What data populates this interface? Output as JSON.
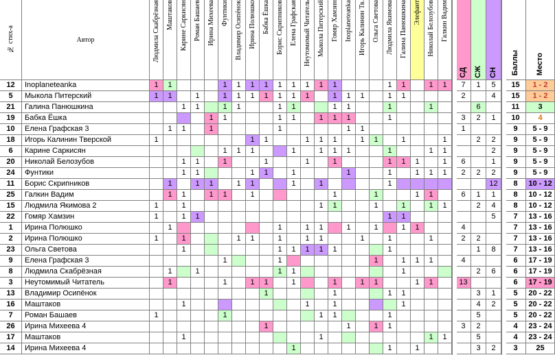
{
  "table": {
    "header": {
      "number": "№ стих-а",
      "author": "Автор",
      "voters": [
        "Людмила Скабрёзная",
        "Маштаков",
        "Карине Саркисян",
        "Роман Башаев",
        "Ирина Михеева",
        "Фунтики",
        "Владимир Осипёнок",
        "Ирина Полюшко",
        "Бабка Ёшка",
        "Борис Скрипников",
        "Елена Графская",
        "Неутомимый Читатель",
        "Мыкола Питерский",
        "Гомяр Хамзин",
        "Inoplaneteanka",
        "Игорь Калинин Тв.",
        "Ольга Светова",
        "Людмила Якимова",
        "Галина Панюшкина",
        "Элефант",
        "Николай Белозубов",
        "Галкин Вадим"
      ],
      "voter_fills": {
        "19": "y"
      },
      "sd": "СД",
      "szh": "СЖ",
      "sn": "СН",
      "score": "Баллы",
      "place": "Место"
    },
    "rows": [
      {
        "number": 12,
        "author": "Inoplaneteanka",
        "votes": [
          1,
          1,
          null,
          null,
          null,
          1,
          1,
          1,
          1,
          1,
          1,
          1,
          1,
          1,
          null,
          null,
          null,
          1,
          1,
          null,
          1,
          1
        ],
        "fills": {
          "0": "p",
          "1": "g",
          "5": "v",
          "7": "v",
          "8": "v",
          "12": "p",
          "13": "v",
          "18": "p",
          "20": "p",
          "21": "p"
        },
        "sd": 7,
        "szh": 1,
        "sn": 5,
        "score": 15,
        "place": "1 - 2",
        "place_fill": "o"
      },
      {
        "number": 5,
        "author": "Мыкола Питерский",
        "votes": [
          1,
          1,
          null,
          1,
          null,
          1,
          1,
          1,
          1,
          1,
          1,
          1,
          null,
          1,
          1,
          1,
          null,
          1,
          1,
          null,
          null,
          null
        ],
        "fills": {
          "0": "v",
          "1": "v",
          "5": "v",
          "8": "p",
          "11": "p",
          "13": "v"
        },
        "sd": 2,
        "szh": null,
        "sn": 4,
        "score": 15,
        "place": "1 - 2",
        "place_fill": "o"
      },
      {
        "number": 21,
        "author": "Галина Панюшкина",
        "votes": [
          null,
          null,
          1,
          1,
          null,
          1,
          1,
          null,
          null,
          1,
          1,
          null,
          null,
          1,
          1,
          null,
          null,
          1,
          null,
          null,
          1,
          null
        ],
        "fills": {
          "4": "g",
          "5": "g",
          "10": "g",
          "12": "g",
          "17": "g",
          "20": "g"
        },
        "sd": null,
        "szh": 6,
        "sn": null,
        "score": 11,
        "place": "3",
        "place_fill": "g",
        "hl": "szh"
      },
      {
        "number": 19,
        "author": "Бабка Ёшка",
        "votes": [
          null,
          null,
          null,
          null,
          1,
          1,
          null,
          null,
          null,
          1,
          1,
          null,
          1,
          1,
          1,
          null,
          null,
          1,
          null,
          null,
          null,
          null
        ],
        "fills": {
          "2": "v",
          "4": "p",
          "12": "p",
          "13": "p",
          "14": "p"
        },
        "sd": 3,
        "szh": 2,
        "sn": 1,
        "score": 10,
        "place": "4",
        "place_fill": "t"
      },
      {
        "number": 10,
        "author": "Елена Графская 3",
        "votes": [
          null,
          1,
          1,
          null,
          1,
          null,
          null,
          null,
          null,
          1,
          null,
          null,
          null,
          null,
          1,
          1,
          null,
          null,
          null,
          null,
          null,
          null
        ],
        "fills": {
          "4": "p"
        },
        "sd": 1,
        "szh": null,
        "sn": null,
        "score": 9,
        "place": "5 - 9"
      },
      {
        "number": 18,
        "author": "Игорь Калинин Тверской",
        "votes": [
          1,
          null,
          null,
          null,
          null,
          null,
          null,
          1,
          1,
          null,
          null,
          1,
          1,
          1,
          null,
          1,
          1,
          null,
          1,
          null,
          null,
          1
        ],
        "fills": {
          "7": "v",
          "16": "g"
        },
        "sd": null,
        "szh": 2,
        "sn": 2,
        "score": 9,
        "place": "5 - 9"
      },
      {
        "number": 6,
        "author": "Карине Саркисян",
        "votes": [
          null,
          null,
          null,
          null,
          null,
          1,
          1,
          1,
          null,
          null,
          1,
          null,
          1,
          1,
          1,
          null,
          null,
          1,
          null,
          null,
          1,
          1
        ],
        "fills": {
          "3": "g",
          "9": "v",
          "17": "g"
        },
        "sd": null,
        "szh": null,
        "sn": 2,
        "score": 9,
        "place": "5 - 9"
      },
      {
        "number": 20,
        "author": "Николай Белозубов",
        "votes": [
          null,
          null,
          1,
          1,
          null,
          1,
          null,
          null,
          1,
          null,
          null,
          1,
          null,
          1,
          null,
          null,
          null,
          1,
          1,
          1,
          null,
          1
        ],
        "fills": {
          "5": "p",
          "13": "p",
          "17": "p",
          "18": "p"
        },
        "sd": 6,
        "szh": null,
        "sn": 1,
        "score": 9,
        "place": "5 - 9"
      },
      {
        "number": 24,
        "author": "Фунтики",
        "votes": [
          null,
          null,
          1,
          1,
          null,
          null,
          null,
          1,
          1,
          null,
          1,
          null,
          null,
          null,
          1,
          null,
          null,
          1,
          null,
          1,
          1,
          1
        ],
        "fills": {
          "4": "g",
          "8": "v",
          "14": "v"
        },
        "sd": 2,
        "szh": 2,
        "sn": 2,
        "score": 9,
        "place": "5 - 9"
      },
      {
        "number": 11,
        "author": "Борис Скрипников",
        "votes": [
          null,
          1,
          null,
          1,
          1,
          null,
          1,
          1,
          null,
          null,
          1,
          null,
          1,
          null,
          null,
          null,
          null,
          1,
          null,
          null,
          null,
          null
        ],
        "fills": {
          "1": "v",
          "3": "v",
          "4": "v",
          "7": "v",
          "9": "v",
          "12": "v",
          "14": "v",
          "18": "v",
          "19": "v",
          "20": "v",
          "21": "v"
        },
        "sd": null,
        "szh": null,
        "sn": 12,
        "score": 8,
        "place": "10 - 12",
        "place_fill": "v",
        "hl": "sn"
      },
      {
        "number": 25,
        "author": "Галкин Вадим",
        "votes": [
          null,
          1,
          1,
          null,
          1,
          1,
          null,
          1,
          null,
          null,
          null,
          null,
          null,
          1,
          null,
          null,
          1,
          null,
          null,
          1,
          1,
          null
        ],
        "fills": {
          "1": "p",
          "4": "p",
          "5": "p",
          "9": "p",
          "16": "g",
          "20": "p"
        },
        "sd": 6,
        "szh": 1,
        "sn": 1,
        "score": 8,
        "place": "10 - 12"
      },
      {
        "number": 15,
        "author": "Людмила Якимова 2",
        "votes": [
          1,
          null,
          1,
          null,
          null,
          null,
          null,
          null,
          null,
          null,
          null,
          null,
          1,
          1,
          null,
          null,
          1,
          null,
          1,
          null,
          1,
          1
        ],
        "fills": {
          "13": "g",
          "18": "g",
          "20": "g"
        },
        "sd": null,
        "szh": 2,
        "sn": 4,
        "score": 8,
        "place": "10 - 12"
      },
      {
        "number": 22,
        "author": "Гомяр Хамзин",
        "votes": [
          1,
          null,
          1,
          1,
          null,
          null,
          null,
          null,
          null,
          null,
          null,
          null,
          null,
          null,
          null,
          null,
          null,
          1,
          1,
          null,
          null,
          null
        ],
        "fills": {
          "3": "v",
          "17": "v",
          "18": "v"
        },
        "sd": null,
        "szh": null,
        "sn": 5,
        "score": 7,
        "place": "13 - 16"
      },
      {
        "number": 1,
        "author": "Ирина Полюшко",
        "votes": [
          null,
          1,
          null,
          null,
          null,
          null,
          null,
          null,
          null,
          1,
          null,
          1,
          1,
          null,
          1,
          null,
          1,
          null,
          1,
          1,
          null,
          null
        ],
        "fills": {
          "2": "p",
          "7": "p",
          "13": "p",
          "17": "p",
          "19": "p"
        },
        "sd": 4,
        "szh": null,
        "sn": null,
        "score": 7,
        "place": "13 - 16"
      },
      {
        "number": 2,
        "author": "Ирина Полюшко",
        "votes": [
          1,
          null,
          1,
          null,
          null,
          null,
          1,
          1,
          null,
          1,
          null,
          1,
          1,
          null,
          null,
          1,
          null,
          1,
          null,
          null,
          1,
          null
        ],
        "fills": {
          "2": "p",
          "4": "g"
        },
        "sd": 2,
        "szh": 2,
        "sn": null,
        "score": 7,
        "place": "13 - 16"
      },
      {
        "number": 23,
        "author": "Ольга Светова",
        "votes": [
          null,
          null,
          1,
          null,
          null,
          null,
          null,
          null,
          null,
          1,
          1,
          1,
          1,
          1,
          null,
          null,
          null,
          1,
          null,
          null,
          null,
          null
        ],
        "fills": {
          "4": "g",
          "11": "v",
          "12": "v",
          "16": "g"
        },
        "sd": null,
        "szh": 1,
        "sn": 8,
        "score": 7,
        "place": "13 - 16"
      },
      {
        "number": 9,
        "author": "Елена Графская 3",
        "votes": [
          null,
          null,
          null,
          null,
          null,
          1,
          null,
          null,
          null,
          1,
          null,
          null,
          null,
          null,
          null,
          null,
          1,
          null,
          1,
          1,
          1,
          null
        ],
        "fills": {
          "6": "g",
          "10": "p",
          "16": "p"
        },
        "sd": 4,
        "szh": null,
        "sn": null,
        "score": 6,
        "place": "17 - 19"
      },
      {
        "number": 8,
        "author": "Людмила Скабрёзная",
        "votes": [
          null,
          1,
          null,
          1,
          null,
          null,
          null,
          null,
          null,
          1,
          1,
          null,
          null,
          null,
          null,
          null,
          null,
          null,
          1,
          null,
          null,
          null
        ],
        "fills": {
          "2": "g",
          "9": "g",
          "11": "g",
          "16": "g",
          "21": "g"
        },
        "sd": null,
        "szh": 2,
        "sn": 6,
        "score": 6,
        "place": "17 - 19"
      },
      {
        "number": 3,
        "author": "Неутомимый Читатель",
        "votes": [
          null,
          1,
          null,
          null,
          null,
          1,
          null,
          1,
          1,
          null,
          1,
          null,
          null,
          1,
          null,
          1,
          1,
          null,
          null,
          1,
          1,
          null
        ],
        "fills": {
          "1": "p",
          "7": "p",
          "8": "p",
          "11": "p",
          "13": "p",
          "15": "p",
          "16": "p",
          "20": "p"
        },
        "sd": 13,
        "szh": null,
        "sn": null,
        "score": 6,
        "place": "17 - 19",
        "place_fill": "p",
        "hl": "sd"
      },
      {
        "number": 13,
        "author": "Владимир Осипёнок",
        "votes": [
          null,
          null,
          null,
          null,
          null,
          null,
          null,
          null,
          1,
          null,
          null,
          null,
          null,
          1,
          null,
          null,
          null,
          1,
          1,
          null,
          null,
          null
        ],
        "fills": {
          "8": "g",
          "11": "g",
          "16": "g"
        },
        "sd": null,
        "szh": 3,
        "sn": 1,
        "score": 5,
        "place": "20 - 22"
      },
      {
        "number": 16,
        "author": "Маштаков",
        "votes": [
          null,
          null,
          1,
          null,
          null,
          null,
          null,
          null,
          null,
          null,
          null,
          1,
          null,
          1,
          null,
          null,
          null,
          null,
          1,
          null,
          null,
          null
        ],
        "fills": {
          "5": "v",
          "9": "g",
          "16": "v",
          "17": "g"
        },
        "sd": null,
        "szh": 4,
        "sn": 2,
        "score": 5,
        "place": "20 - 22"
      },
      {
        "number": 7,
        "author": "Роман Башаев",
        "votes": [
          1,
          null,
          null,
          null,
          null,
          1,
          null,
          null,
          null,
          null,
          null,
          null,
          1,
          1,
          null,
          null,
          null,
          1,
          null,
          null,
          null,
          null
        ],
        "fills": {
          "5": "g",
          "11": "g",
          "14": "g"
        },
        "sd": null,
        "szh": 5,
        "sn": null,
        "score": 5,
        "place": "20 - 22"
      },
      {
        "number": 26,
        "author": "Ирина Михеева 4",
        "votes": [
          null,
          null,
          null,
          null,
          null,
          null,
          null,
          null,
          1,
          null,
          null,
          null,
          null,
          null,
          1,
          null,
          1,
          1,
          null,
          null,
          null,
          null
        ],
        "fills": {
          "8": "p",
          "16": "p"
        },
        "sd": 3,
        "szh": 2,
        "sn": null,
        "score": 4,
        "place": "23 - 24"
      },
      {
        "number": 17,
        "author": "Маштаков",
        "votes": [
          null,
          null,
          1,
          null,
          null,
          null,
          null,
          null,
          null,
          null,
          null,
          null,
          1,
          null,
          null,
          null,
          null,
          null,
          null,
          null,
          1,
          1
        ],
        "fills": {
          "9": "g",
          "14": "g",
          "20": "g"
        },
        "sd": null,
        "szh": 5,
        "sn": null,
        "score": 4,
        "place": "23 - 24"
      },
      {
        "number": 14,
        "author": "Ирина Михеева 4",
        "votes": [
          null,
          null,
          null,
          null,
          null,
          null,
          null,
          null,
          null,
          null,
          1,
          null,
          null,
          null,
          null,
          null,
          null,
          1,
          null,
          1,
          null,
          null
        ],
        "fills": {
          "10": "g",
          "16": "g"
        },
        "sd": null,
        "szh": 3,
        "sn": 2,
        "score": 3,
        "place": "25"
      }
    ]
  }
}
